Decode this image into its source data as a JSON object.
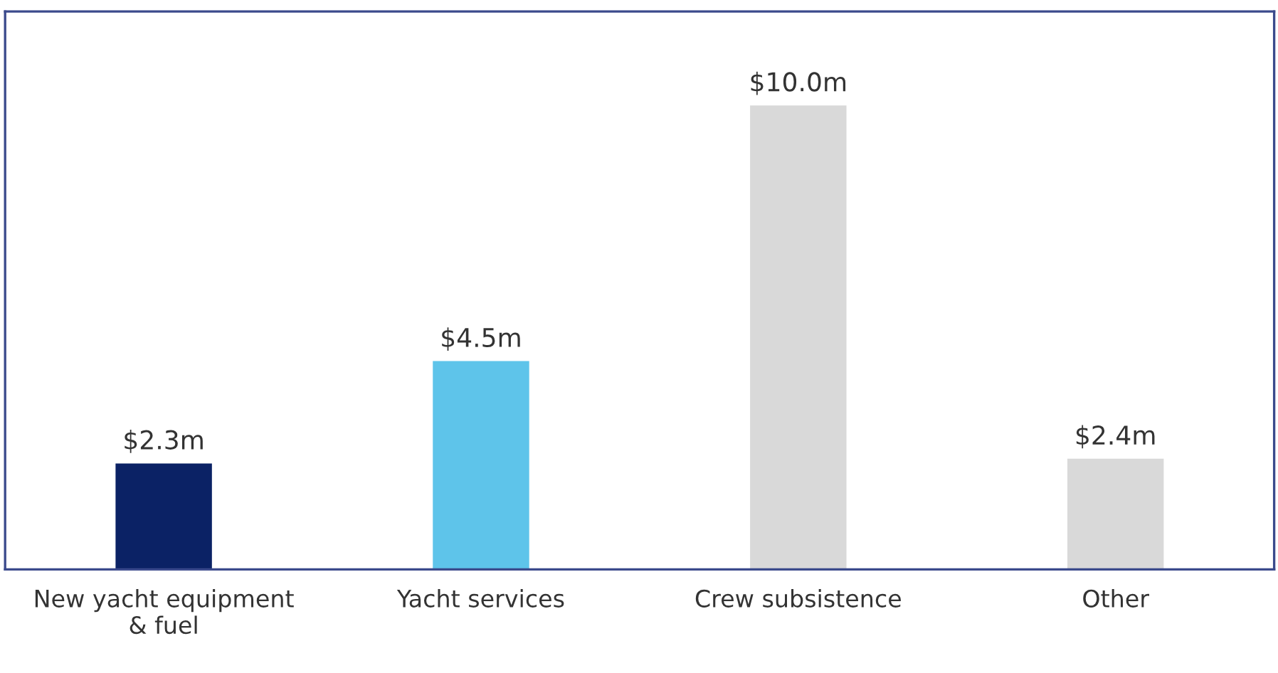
{
  "chart_data": {
    "type": "bar",
    "categories": [
      "New yacht equipment\n& fuel",
      "Yacht services",
      "Crew subsistence",
      "Other"
    ],
    "values": [
      2.3,
      4.5,
      10.0,
      2.4
    ],
    "colors": [
      "#0b2265",
      "#5ec4ea",
      "#d9d9d9",
      "#d9d9d9"
    ],
    "value_labels": [
      "$2.3m",
      "$4.5m",
      "$10.0m",
      "$2.4m"
    ],
    "ylim": [
      0,
      12
    ],
    "tick_labels": "x",
    "grid": false,
    "legend": false
  }
}
